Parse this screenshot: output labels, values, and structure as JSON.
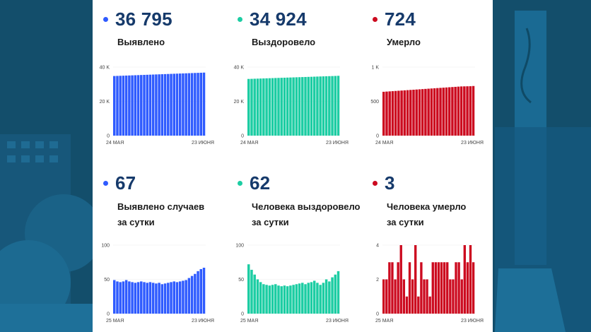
{
  "colors": {
    "blue": "#2f5bff",
    "teal": "#1ccda3",
    "red": "#cc0a1f",
    "number": "#163a6b"
  },
  "cards": [
    {
      "id": "total-detected",
      "value": "36 795",
      "label": [
        "Выявлено"
      ],
      "color_key": "blue"
    },
    {
      "id": "total-recovered",
      "value": "34 924",
      "label": [
        "Выздоровело"
      ],
      "color_key": "teal"
    },
    {
      "id": "total-deaths",
      "value": "724",
      "label": [
        "Умерло"
      ],
      "color_key": "red"
    },
    {
      "id": "daily-detected",
      "value": "67",
      "label": [
        "Выявлено случаев",
        "за сутки"
      ],
      "color_key": "blue"
    },
    {
      "id": "daily-recovered",
      "value": "62",
      "label": [
        "Человека выздоровело",
        "за сутки"
      ],
      "color_key": "teal"
    },
    {
      "id": "daily-deaths",
      "value": "3",
      "label": [
        "Человека умерло",
        "за сутки"
      ],
      "color_key": "red"
    }
  ],
  "chart_data": [
    {
      "type": "bar",
      "id": "total-detected-chart",
      "color_key": "blue",
      "ylim": [
        0,
        40000
      ],
      "yticks": [
        0,
        20000,
        40000
      ],
      "ytick_labels": [
        "0",
        "20 K",
        "40 K"
      ],
      "x_start_label": "24 МАЯ",
      "x_end_label": "23 ИЮНЯ",
      "values": [
        34800,
        34866,
        34932,
        34998,
        35064,
        35130,
        35196,
        35262,
        35328,
        35394,
        35460,
        35526,
        35592,
        35658,
        35724,
        35790,
        35856,
        35922,
        35988,
        36054,
        36120,
        36186,
        36252,
        36318,
        36384,
        36450,
        36516,
        36582,
        36648,
        36714,
        36795
      ]
    },
    {
      "type": "bar",
      "id": "total-recovered-chart",
      "color_key": "teal",
      "ylim": [
        0,
        40000
      ],
      "yticks": [
        0,
        20000,
        40000
      ],
      "ytick_labels": [
        "0",
        "20 K",
        "40 K"
      ],
      "x_start_label": "24 МАЯ",
      "x_end_label": "23 ИЮНЯ",
      "values": [
        33100,
        33160,
        33220,
        33280,
        33340,
        33400,
        33460,
        33520,
        33580,
        33640,
        33700,
        33760,
        33820,
        33880,
        33940,
        34000,
        34060,
        34120,
        34180,
        34240,
        34300,
        34360,
        34420,
        34480,
        34540,
        34600,
        34660,
        34720,
        34780,
        34840,
        34924
      ]
    },
    {
      "type": "bar",
      "id": "total-deaths-chart",
      "color_key": "red",
      "ylim": [
        0,
        1000
      ],
      "yticks": [
        0,
        500,
        1000
      ],
      "ytick_labels": [
        "0",
        "500",
        "1 K"
      ],
      "x_start_label": "24 МАЯ",
      "x_end_label": "23 ИЮНЯ",
      "values": [
        640,
        643,
        646,
        649,
        652,
        655,
        658,
        661,
        664,
        667,
        670,
        673,
        676,
        679,
        682,
        685,
        688,
        691,
        694,
        697,
        700,
        703,
        706,
        709,
        712,
        715,
        718,
        719,
        720,
        721,
        724
      ]
    },
    {
      "type": "bar",
      "id": "daily-detected-chart",
      "color_key": "blue",
      "ylim": [
        0,
        100
      ],
      "yticks": [
        0,
        50,
        100
      ],
      "ytick_labels": [
        "0",
        "50",
        "100"
      ],
      "x_start_label": "25 МАЯ",
      "x_end_label": "23 ИЮНЯ",
      "values": [
        49,
        47,
        46,
        47,
        49,
        47,
        46,
        45,
        46,
        47,
        46,
        45,
        46,
        45,
        44,
        45,
        43,
        44,
        45,
        46,
        47,
        46,
        47,
        48,
        49,
        52,
        55,
        58,
        62,
        65,
        67
      ]
    },
    {
      "type": "bar",
      "id": "daily-recovered-chart",
      "color_key": "teal",
      "ylim": [
        0,
        100
      ],
      "yticks": [
        0,
        50,
        100
      ],
      "ytick_labels": [
        "0",
        "50",
        "100"
      ],
      "x_start_label": "25 МАЯ",
      "x_end_label": "23 ИЮНЯ",
      "values": [
        72,
        64,
        57,
        50,
        46,
        43,
        42,
        41,
        42,
        43,
        41,
        40,
        41,
        40,
        41,
        42,
        43,
        44,
        45,
        43,
        45,
        46,
        48,
        45,
        42,
        45,
        50,
        47,
        53,
        57,
        62
      ]
    },
    {
      "type": "bar",
      "id": "daily-deaths-chart",
      "color_key": "red",
      "ylim": [
        0,
        4
      ],
      "yticks": [
        0,
        2,
        4
      ],
      "ytick_labels": [
        "0",
        "2",
        "4"
      ],
      "x_start_label": "25 МАЯ",
      "x_end_label": "23 ИЮНЯ",
      "values": [
        2,
        2,
        3,
        3,
        2,
        3,
        4,
        2,
        1,
        3,
        2,
        4,
        1,
        3,
        2,
        2,
        1,
        3,
        3,
        3,
        3,
        3,
        3,
        2,
        2,
        3,
        3,
        2,
        4,
        3,
        4,
        3
      ]
    }
  ]
}
